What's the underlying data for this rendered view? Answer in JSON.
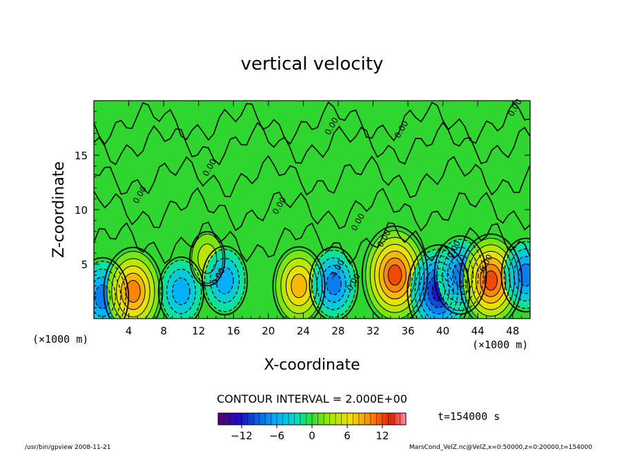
{
  "chart_data": {
    "type": "heatmap",
    "title": "vertical velocity",
    "xlabel": "X-coordinate",
    "ylabel": "Z-coordinate",
    "x_unit": "(×1000 m)",
    "y_unit": "(×1000 m)",
    "xlim": [
      0,
      50
    ],
    "ylim": [
      0,
      20
    ],
    "x_ticks": [
      4,
      8,
      12,
      16,
      20,
      24,
      28,
      32,
      36,
      40,
      44,
      48
    ],
    "y_ticks": [
      5,
      10,
      15
    ],
    "contour_interval_text": "CONTOUR INTERVAL = 2.000E+00",
    "contour_interval": 2,
    "time_text": "t=154000 s",
    "colorbar": {
      "range": [
        -16,
        16
      ],
      "ticks": [
        -12,
        -6,
        0,
        6,
        12
      ]
    },
    "cells": [
      {
        "x": 1,
        "z": 2,
        "w": -8
      },
      {
        "x": 4.5,
        "z": 2.5,
        "w": 10
      },
      {
        "x": 10,
        "z": 2.5,
        "w": -6
      },
      {
        "x": 13,
        "z": 5.5,
        "w": 3
      },
      {
        "x": 15,
        "z": 3.5,
        "w": -6
      },
      {
        "x": 23.5,
        "z": 3,
        "w": 8
      },
      {
        "x": 27.5,
        "z": 3.2,
        "w": -7
      },
      {
        "x": 34.5,
        "z": 4,
        "w": 12
      },
      {
        "x": 39.5,
        "z": 2.5,
        "w": -11
      },
      {
        "x": 42,
        "z": 4,
        "w": -8
      },
      {
        "x": 45.5,
        "z": 3.5,
        "w": 11
      },
      {
        "x": 49.5,
        "z": 4,
        "w": -7
      }
    ],
    "contour_labels": [
      "0.00",
      "0.00",
      "0.00",
      "0.00",
      "0.00",
      "0.00",
      "0.00",
      "0.00",
      "0.00",
      "-4.00",
      "-6.00",
      "0.00",
      "0.00"
    ]
  },
  "footer": {
    "left": "/usr/bin/gpview   2008-11-21",
    "right": "MarsCond_VelZ.nc@VelZ,x=0:50000,z=0:20000,t=154000"
  }
}
